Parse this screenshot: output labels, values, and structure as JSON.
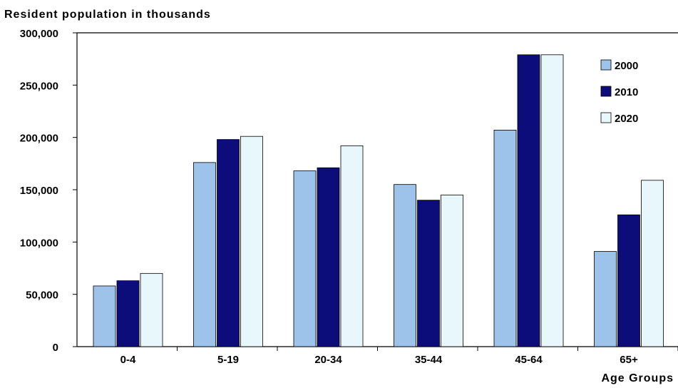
{
  "chart_data": {
    "type": "bar",
    "title": "",
    "ylabel": "Resident population in thousands",
    "xlabel": "Age Groups",
    "categories": [
      "0-4",
      "5-19",
      "20-34",
      "35-44",
      "45-64",
      "65+"
    ],
    "series": [
      {
        "name": "2000",
        "values": [
          58000,
          176000,
          168000,
          155000,
          207000,
          91000
        ],
        "color": "#9ec3ea"
      },
      {
        "name": "2010",
        "values": [
          63000,
          198000,
          171000,
          140000,
          279000,
          126000
        ],
        "color": "#0c0c7a"
      },
      {
        "name": "2020",
        "values": [
          70000,
          201000,
          192000,
          145000,
          279000,
          159000
        ],
        "color": "#e8f7fb"
      }
    ],
    "ylim": [
      0,
      300000
    ],
    "yticks": [
      "0",
      "50,000",
      "100,000",
      "150,000",
      "200,000",
      "250,000",
      "300,000"
    ],
    "grid": false,
    "legend_position": "top-right"
  }
}
